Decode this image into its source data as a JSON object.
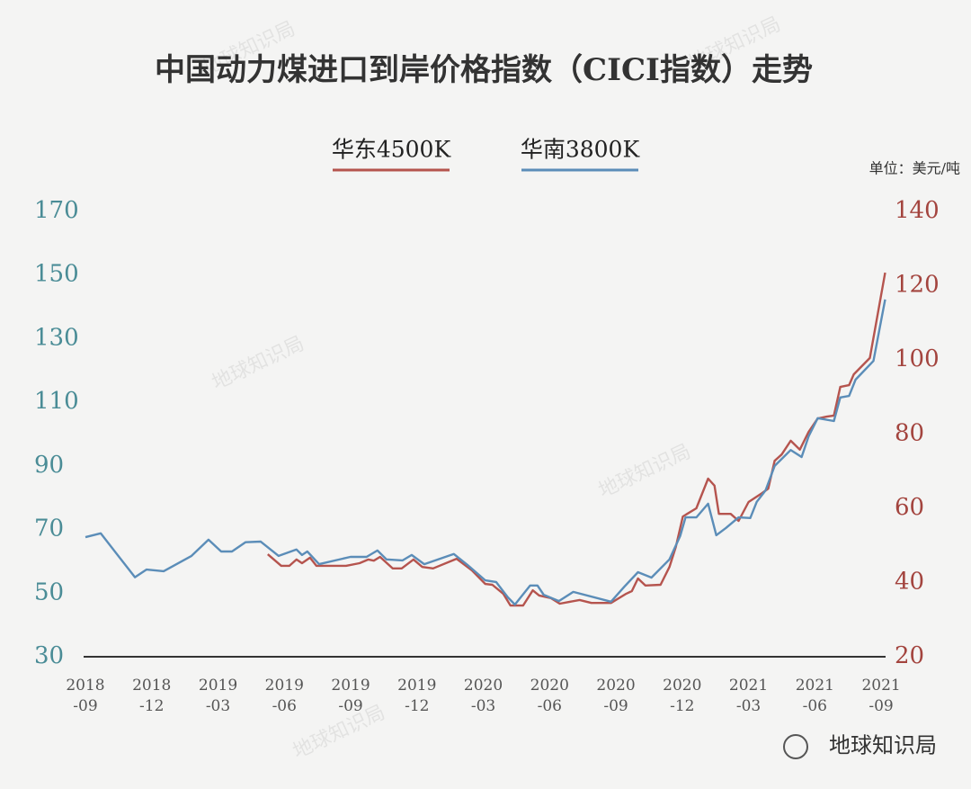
{
  "chart_data": {
    "type": "line",
    "title": "中国动力煤进口到岸价格指数（CICI指数）走势",
    "unit": "单位：美元/吨",
    "watermark": "地球知识局",
    "xlim": [
      0,
      36.2
    ],
    "xticks": [
      {
        "value": 0,
        "label": "2018-09"
      },
      {
        "value": 3,
        "label": "2018-12"
      },
      {
        "value": 6,
        "label": "2019-03"
      },
      {
        "value": 9,
        "label": "2019-06"
      },
      {
        "value": 12,
        "label": "2019-09"
      },
      {
        "value": 15,
        "label": "2019-12"
      },
      {
        "value": 18,
        "label": "2020-03"
      },
      {
        "value": 21,
        "label": "2020-06"
      },
      {
        "value": 24,
        "label": "2020-09"
      },
      {
        "value": 27,
        "label": "2020-12"
      },
      {
        "value": 30,
        "label": "2021-03"
      },
      {
        "value": 33,
        "label": "2021-06"
      },
      {
        "value": 36,
        "label": "2021-09"
      }
    ],
    "ylim": [
      30,
      170
    ],
    "yticks": [
      30,
      50,
      70,
      90,
      110,
      130,
      150,
      170
    ],
    "y2lim": [
      20,
      140
    ],
    "y2ticks": [
      20,
      40,
      60,
      80,
      100,
      120,
      140
    ],
    "series": [
      {
        "name": "华东4500K",
        "color": "#b5544e",
        "axis": "y2",
        "x": [
          8.25,
          8.86,
          9.23,
          9.55,
          9.8,
          10.16,
          10.45,
          11.79,
          12.4,
          12.8,
          13.05,
          13.33,
          13.9,
          14.31,
          14.84,
          15.24,
          15.73,
          16.79,
          17.48,
          18.09,
          18.41,
          18.9,
          19.23,
          19.8,
          20.24,
          20.53,
          21.06,
          21.46,
          22.36,
          22.89,
          23.78,
          24.47,
          24.72,
          25,
          25.33,
          26.02,
          26.42,
          26.71,
          27.03,
          27.64,
          28.17,
          28.46,
          28.66,
          29.19,
          29.55,
          30,
          30.61,
          30.89,
          31.18,
          31.5,
          31.91,
          32.32,
          32.72,
          33.13,
          33.54,
          33.86,
          34.15,
          34.55,
          34.76,
          35.49,
          36.18
        ],
        "values": [
          47.6,
          44.5,
          44.5,
          46.2,
          45.2,
          46.7,
          44.5,
          44.5,
          45.2,
          46.2,
          45.9,
          46.9,
          43.8,
          43.8,
          46.2,
          44.2,
          43.8,
          46.4,
          43.3,
          39.6,
          39.4,
          37,
          33.8,
          33.8,
          37.9,
          36.5,
          35.8,
          34.3,
          35.3,
          34.5,
          34.5,
          37,
          37.7,
          41.1,
          39.2,
          39.4,
          44.2,
          49.6,
          57.8,
          60,
          68,
          66.1,
          58.5,
          58.5,
          56.6,
          61.7,
          64.1,
          65.3,
          72.8,
          74.5,
          78.2,
          75.8,
          80.6,
          84.2,
          84.7,
          85,
          92.7,
          93.2,
          96.1,
          100.5,
          123.5
        ]
      },
      {
        "name": "华南3800K",
        "color": "#5b8db8",
        "x": [
          0,
          0.69,
          2.24,
          2.76,
          3.54,
          4.8,
          5.57,
          6.14,
          6.63,
          7.24,
          7.93,
          8.74,
          9.55,
          9.8,
          10.04,
          10.57,
          11.99,
          12.72,
          13.21,
          13.62,
          14.35,
          14.76,
          15.33,
          16.67,
          17.28,
          18.09,
          18.58,
          19.11,
          19.43,
          20.12,
          20.45,
          20.73,
          21.42,
          22.07,
          23.78,
          24.39,
          25,
          25.61,
          26.42,
          26.91,
          27.15,
          27.64,
          28.17,
          28.54,
          28.98,
          29.55,
          30.08,
          30.37,
          30.77,
          31.18,
          31.91,
          32.4,
          32.72,
          33.13,
          33.86,
          34.15,
          34.55,
          34.84,
          35.65,
          36.18
        ],
        "values": [
          67.6,
          68.8,
          55,
          57.4,
          56.9,
          61.7,
          66.8,
          63.1,
          63.1,
          66,
          66.2,
          61.7,
          63.7,
          62,
          63.1,
          59.1,
          61.4,
          61.4,
          63.4,
          60.6,
          60.3,
          62,
          59.1,
          62.3,
          58.9,
          54,
          53.5,
          48.7,
          46.4,
          52.4,
          52.4,
          49.5,
          47.5,
          50.4,
          47.3,
          52.1,
          56.6,
          54.9,
          60.6,
          68,
          73.8,
          73.8,
          78.1,
          68.2,
          70.5,
          73.8,
          73.6,
          78.7,
          82.3,
          90,
          95,
          92.8,
          99.3,
          105,
          104.1,
          111.5,
          112,
          117.1,
          123,
          142.3
        ]
      }
    ]
  }
}
